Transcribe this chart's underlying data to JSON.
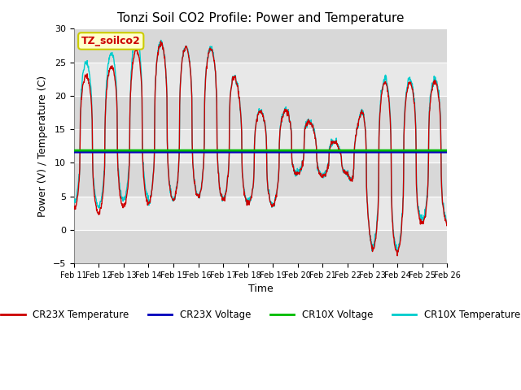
{
  "title": "Tonzi Soil CO2 Profile: Power and Temperature",
  "xlabel": "Time",
  "ylabel": "Power (V) / Temperature (C)",
  "ylim": [
    -5,
    30
  ],
  "yticks": [
    -5,
    0,
    5,
    10,
    15,
    20,
    25,
    30
  ],
  "xtick_labels": [
    "Feb 11",
    "Feb 12",
    "Feb 13",
    "Feb 14",
    "Feb 15",
    "Feb 16",
    "Feb 17",
    "Feb 18",
    "Feb 19",
    "Feb 20",
    "Feb 21",
    "Feb 22",
    "Feb 23",
    "Feb 24",
    "Feb 25",
    "Feb 26"
  ],
  "cr23x_voltage": 11.6,
  "cr10x_voltage": 11.85,
  "annotation_text": "TZ_soilco2",
  "annotation_color": "#cc0000",
  "annotation_bg": "#ffffcc",
  "annotation_border": "#cccc00",
  "bg_color": "#e8e8e8",
  "plot_bg": "#e8e8e8",
  "band1_color": "#e0e0e0",
  "band2_color": "#d0d0d0",
  "cr23x_temp_color": "#cc0000",
  "cr23x_volt_color": "#0000bb",
  "cr10x_volt_color": "#00bb00",
  "cr10x_temp_color": "#00cccc",
  "legend_labels": [
    "CR23X Temperature",
    "CR23X Voltage",
    "CR10X Voltage",
    "CR10X Temperature"
  ],
  "legend_colors": [
    "#cc0000",
    "#0000bb",
    "#00bb00",
    "#00cccc"
  ]
}
